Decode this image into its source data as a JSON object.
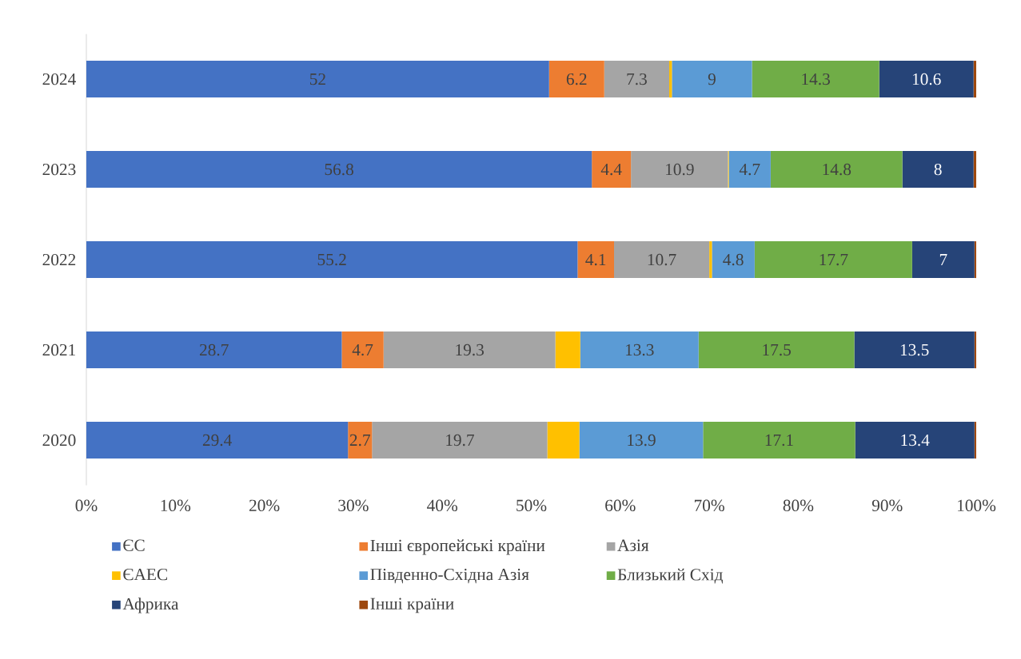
{
  "chart_data": {
    "type": "bar",
    "orientation": "horizontal",
    "stacked": true,
    "categories": [
      "2024",
      "2023",
      "2022",
      "2021",
      "2020"
    ],
    "xlim": [
      0,
      100
    ],
    "xticks": [
      {
        "value": 0,
        "label": "0%"
      },
      {
        "value": 10,
        "label": "10%"
      },
      {
        "value": 20,
        "label": "20%"
      },
      {
        "value": 30,
        "label": "30%"
      },
      {
        "value": 40,
        "label": "40%"
      },
      {
        "value": 50,
        "label": "50%"
      },
      {
        "value": 60,
        "label": "60%"
      },
      {
        "value": 70,
        "label": "70%"
      },
      {
        "value": 80,
        "label": "80%"
      },
      {
        "value": 90,
        "label": "90%"
      },
      {
        "value": 100,
        "label": "100%"
      }
    ],
    "legend": "bottom",
    "grid": false,
    "series": [
      {
        "name": "ЄС",
        "color": "#4472c4",
        "values": [
          52,
          56.8,
          55.2,
          28.7,
          29.4
        ],
        "value_labels": [
          "52",
          "56.8",
          "55.2",
          "28.7",
          "29.4"
        ]
      },
      {
        "name": "Інші європейські країни",
        "color": "#ed7d31",
        "values": [
          6.2,
          4.4,
          4.1,
          4.7,
          2.7
        ],
        "value_labels": [
          "6.2",
          "4.4",
          "4.1",
          "4.7",
          "2.7"
        ]
      },
      {
        "name": "Азія",
        "color": "#a5a5a5",
        "values": [
          7.3,
          10.9,
          10.7,
          19.3,
          19.7
        ],
        "value_labels": [
          "7.3",
          "10.9",
          "10.7",
          "19.3",
          "19.7"
        ]
      },
      {
        "name": "ЄАЕС",
        "color": "#ffc000",
        "values": [
          0.3,
          0.1,
          0.3,
          2.8,
          3.6
        ]
      },
      {
        "name": "Південно-Східна Азія",
        "color": "#5b9bd5",
        "values": [
          9,
          4.7,
          4.8,
          13.3,
          13.9
        ],
        "value_labels": [
          "9",
          "4.7",
          "4.8",
          "13.3",
          "13.9"
        ]
      },
      {
        "name": "Близький Схід",
        "color": "#70ad47",
        "values": [
          14.3,
          14.8,
          17.7,
          17.5,
          17.1
        ],
        "value_labels": [
          "14.3",
          "14.8",
          "17.7",
          "17.5",
          "17.1"
        ]
      },
      {
        "name": "Африка",
        "color": "#264478",
        "values": [
          10.6,
          8,
          7,
          13.5,
          13.4
        ],
        "value_labels": [
          "10.6",
          "8",
          "7",
          "13.5",
          "13.4"
        ]
      },
      {
        "name": "Інші країни",
        "color": "#9e480e",
        "values": [
          0.3,
          0.3,
          0.2,
          0.2,
          0.2
        ]
      }
    ]
  }
}
